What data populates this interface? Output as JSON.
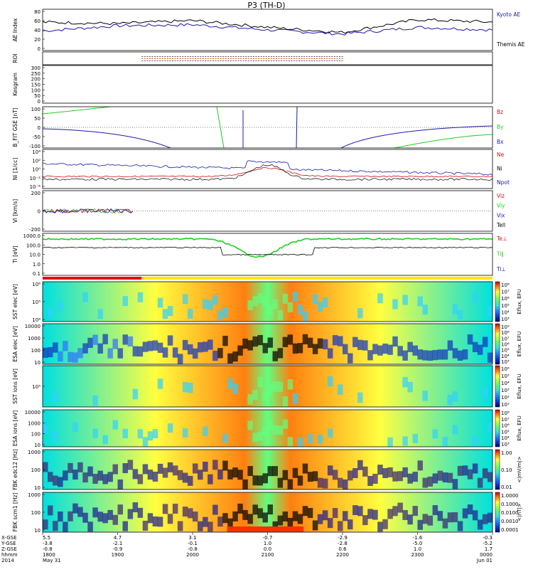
{
  "title": "P3 (TH-D)",
  "colors": {
    "blue": "#1a1aa8",
    "black": "#000000",
    "red": "#cc1111",
    "green": "#22cc22",
    "orange": "#cc5500"
  },
  "panels": [
    {
      "id": "ae",
      "ylabel": "AE Index",
      "yticks": [
        "80",
        "60",
        "40",
        "20",
        "0"
      ],
      "legend": [
        {
          "text": "Kyoto AE",
          "color": "blue"
        },
        {
          "text": "Themis AE",
          "color": "black"
        }
      ]
    },
    {
      "id": "roi",
      "ylabel": "ROI",
      "yticks": [],
      "legend": []
    },
    {
      "id": "kesgram",
      "ylabel": "Kesgram",
      "yticks": [
        "300",
        "250",
        "200",
        "150",
        "100",
        "50",
        "0"
      ],
      "legend": []
    },
    {
      "id": "bfit",
      "ylabel": "B_FIT GSE [nT]",
      "yticks": [
        "100",
        "50",
        "0",
        "-50",
        "-100"
      ],
      "legend": [
        {
          "text": "Bz",
          "color": "red"
        },
        {
          "text": "By",
          "color": "green"
        },
        {
          "text": "Bx",
          "color": "blue"
        }
      ]
    },
    {
      "id": "ni",
      "ylabel": "Ni [1/cc]",
      "yticks": [
        "10⁴",
        "10²",
        "10⁰",
        "10⁻²",
        "10⁻⁴"
      ],
      "legend": [
        {
          "text": "Ne",
          "color": "red"
        },
        {
          "text": "Ni",
          "color": "black"
        },
        {
          "text": "Npot",
          "color": "blue"
        }
      ]
    },
    {
      "id": "vi",
      "ylabel": "Vi [km/s]",
      "yticks": [
        "200",
        "0",
        "-200"
      ],
      "legend": [
        {
          "text": "Viz",
          "color": "red"
        },
        {
          "text": "Viy",
          "color": "green"
        },
        {
          "text": "Vix",
          "color": "blue"
        },
        {
          "text": "Tell",
          "color": "black"
        }
      ]
    },
    {
      "id": "ti",
      "ylabel": "Ti [eV]",
      "yticks": [
        "1000.0",
        "100.0",
        "10.0",
        "1.0",
        "0.1"
      ],
      "legend": [
        {
          "text": "Te⊥",
          "color": "red"
        },
        {
          "text": "Ti∥",
          "color": "green"
        },
        {
          "text": "Ti⊥",
          "color": "blue"
        }
      ]
    },
    {
      "id": "sst_e",
      "ylabel": "SST elec [eV]",
      "yticks": [
        "10⁶",
        "10⁵",
        "10⁴"
      ],
      "cbar": {
        "type": "spectral",
        "labels": [
          "10⁸",
          "10⁷",
          "10⁶",
          "10⁵",
          "10⁴",
          "10³"
        ],
        "title": "Eflux, EFU"
      }
    },
    {
      "id": "esa_e",
      "ylabel": "ESA elec [eV]",
      "yticks": [
        "10000",
        "1000",
        "100",
        "10"
      ],
      "cbar": {
        "type": "spectral",
        "labels": [
          "10⁹",
          "10⁸",
          "10⁷",
          "10⁶",
          "10⁵",
          "10⁴",
          "10³"
        ],
        "title": "Eflux, EFU"
      }
    },
    {
      "id": "sst_i",
      "ylabel": "SST ions [eV]",
      "yticks": [
        "10⁵"
      ],
      "cbar": {
        "type": "spectral",
        "labels": [
          "10⁶",
          "10⁵",
          "10⁴",
          "10³",
          "10²",
          "10¹"
        ],
        "title": "Eflux, EFU"
      }
    },
    {
      "id": "esa_i",
      "ylabel": "ESA ions [eV]",
      "yticks": [
        "10000",
        "1000",
        "100",
        "10"
      ],
      "cbar": {
        "type": "spectral",
        "labels": [
          "10⁸",
          "10⁷",
          "10⁶",
          "10⁵",
          "10⁴",
          "10³"
        ],
        "title": "Eflux, EFU"
      }
    },
    {
      "id": "fbk_e",
      "ylabel": "FBK edc12 [Hz]",
      "yticks": [
        "1000",
        "100",
        "10"
      ],
      "cbar": {
        "type": "spectral",
        "labels": [
          "1.00",
          "0.10",
          "0.01"
        ],
        "title": "<|mV/m|>"
      }
    },
    {
      "id": "fbk_s",
      "ylabel": "FBK scm1 [Hz]",
      "yticks": [
        "1000",
        "100",
        "10"
      ],
      "cbar": {
        "type": "spectral",
        "labels": [
          "1.0000",
          "0.1000",
          "0.0100",
          "0.0010",
          "0.0001"
        ],
        "title": "<|nT|>"
      }
    }
  ],
  "xaxis": {
    "row_labels": [
      "X-GSE",
      "Y-GSE",
      "Z-GSE",
      "hhmm",
      "2014"
    ],
    "columns": [
      {
        "values": [
          "5.5",
          "-3.8",
          "-0.8",
          "1800",
          "May 31"
        ]
      },
      {
        "values": [
          "4.7",
          "-2.1",
          "-0.9",
          "1900",
          ""
        ]
      },
      {
        "values": [
          "3.1",
          "-0.1",
          "-0.8",
          "2000",
          ""
        ]
      },
      {
        "values": [
          "-0.7",
          "1.0",
          "0.0",
          "2100",
          ""
        ]
      },
      {
        "values": [
          "-2.9",
          "-2.8",
          "0.6",
          "2200",
          ""
        ]
      },
      {
        "values": [
          "-1.6",
          "-5.0",
          "1.0",
          "2300",
          ""
        ]
      },
      {
        "values": [
          "-0.3",
          "-5.2",
          "1.7",
          "0000",
          "Jun 01"
        ]
      }
    ]
  },
  "chart_data": {
    "type": "line",
    "title": "P3 (TH-D)",
    "x": [
      "1800",
      "1900",
      "2000",
      "2100",
      "2200",
      "2300",
      "0000"
    ],
    "series": [
      {
        "name": "Kyoto AE",
        "values": [
          38,
          48,
          50,
          40,
          32,
          45,
          40
        ]
      },
      {
        "name": "Themis AE",
        "values": [
          55,
          52,
          58,
          45,
          35,
          60,
          55
        ]
      }
    ],
    "ylabel": "AE Index",
    "ylim": [
      0,
      80
    ]
  }
}
